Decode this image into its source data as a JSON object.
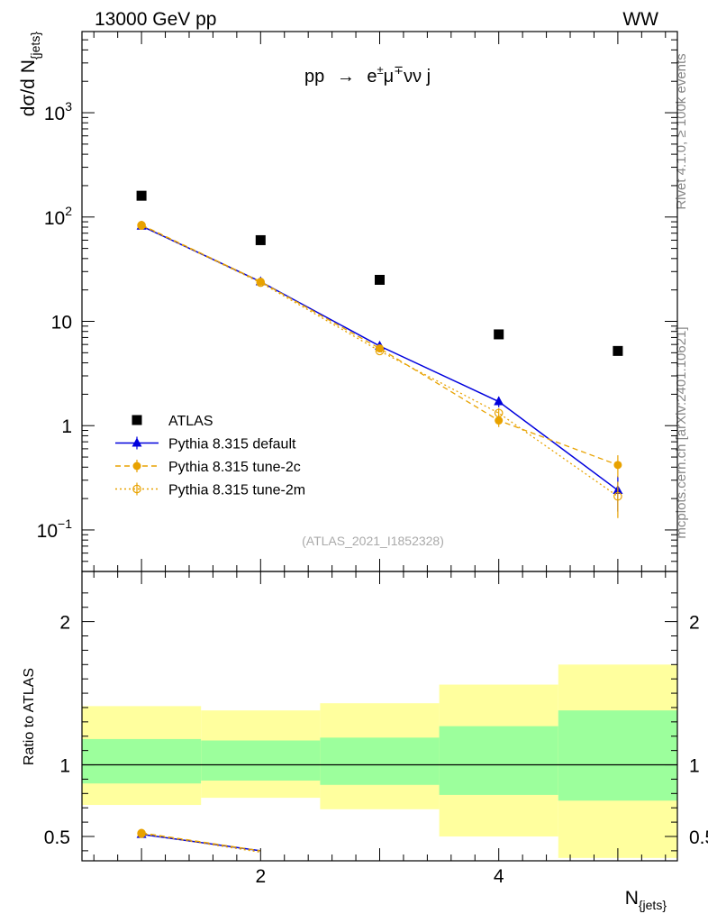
{
  "header": {
    "left": "13000 GeV pp",
    "right": "WW"
  },
  "side_labels": {
    "top": "Rivet 4.1.0, ≥ 100k events",
    "bottom": "mcplots.cern.ch [arXiv:2401.10621]"
  },
  "chart_data": [
    {
      "type": "scatter",
      "name": "main",
      "title": "pp → e±μ∓νν j",
      "title_parts": {
        "lead": "pp",
        "arrow": "→",
        "e": "e",
        "e_sup": "±",
        "mu": "μ",
        "mu_sup": "∓",
        "tail": "νν j"
      },
      "ylabel": "dσ/d N",
      "ylabel_sub": "{jets}",
      "yscale": "log",
      "ylim": [
        0.04,
        6000
      ],
      "xlim": [
        0.5,
        5.5
      ],
      "ytick_labels": [
        {
          "value": 1000,
          "base": "10",
          "sup": "3"
        },
        {
          "value": 100,
          "base": "10",
          "sup": "2"
        },
        {
          "value": 10,
          "base": "10",
          "sup": ""
        },
        {
          "value": 1,
          "base": "1",
          "sup": ""
        },
        {
          "value": 0.1,
          "base": "10",
          "sup": "−1"
        }
      ],
      "watermark": "(ATLAS_2021_I1852328)",
      "legend_position": "lower-left",
      "series": [
        {
          "name": "ATLAS",
          "x": [
            1,
            2,
            3,
            4,
            5
          ],
          "y": [
            160,
            60,
            25,
            7.5,
            5.2
          ],
          "color": "#000000",
          "marker": "square"
        },
        {
          "name": "Pythia 8.315 default",
          "x": [
            1,
            2,
            3,
            4,
            5
          ],
          "y": [
            82,
            24,
            5.8,
            1.7,
            0.24
          ],
          "yerr": [
            1.5,
            0.4,
            0.15,
            0.2,
            0.09
          ],
          "color": "#0000dd",
          "marker": "triangle",
          "line": "solid"
        },
        {
          "name": "Pythia 8.315 tune-2c",
          "x": [
            1,
            2,
            3,
            4,
            5
          ],
          "y": [
            84,
            24,
            5.5,
            1.12,
            0.42
          ],
          "yerr": [
            1.5,
            0.4,
            0.15,
            0.15,
            0.1
          ],
          "color": "#e8a200",
          "marker": "circle-filled",
          "line": "dashed"
        },
        {
          "name": "Pythia 8.315 tune-2m",
          "x": [
            1,
            2,
            3,
            4,
            5
          ],
          "y": [
            83,
            23.5,
            5.2,
            1.32,
            0.21
          ],
          "yerr": [
            1.5,
            0.4,
            0.15,
            0.15,
            0.08
          ],
          "color": "#e8a200",
          "marker": "circle-open",
          "line": "dotted"
        }
      ]
    },
    {
      "type": "scatter",
      "name": "ratio",
      "ylabel": "Ratio to ATLAS",
      "xlabel": "N",
      "xlabel_sub": "{jets}",
      "ylim": [
        0.33,
        2.35
      ],
      "xlim": [
        0.5,
        5.5
      ],
      "ytick_labels": [
        "0.5",
        "1",
        "2"
      ],
      "ytick_values": [
        0.5,
        1,
        2
      ],
      "xtick_labels": [
        "2",
        "4"
      ],
      "xtick_values": [
        2,
        4
      ],
      "reference_line": 1,
      "bands": [
        {
          "x0": 0.5,
          "x1": 1.5,
          "green": [
            0.87,
            1.18
          ],
          "yellow": [
            0.72,
            1.41
          ]
        },
        {
          "x0": 1.5,
          "x1": 2.5,
          "green": [
            0.89,
            1.17
          ],
          "yellow": [
            0.77,
            1.38
          ]
        },
        {
          "x0": 2.5,
          "x1": 3.5,
          "green": [
            0.86,
            1.19
          ],
          "yellow": [
            0.69,
            1.43
          ]
        },
        {
          "x0": 3.5,
          "x1": 4.5,
          "green": [
            0.79,
            1.27
          ],
          "yellow": [
            0.5,
            1.56
          ]
        },
        {
          "x0": 4.5,
          "x1": 5.5,
          "green": [
            0.75,
            1.38
          ],
          "yellow": [
            0.35,
            1.7
          ]
        }
      ],
      "series": [
        {
          "name": "Pythia 8.315 default",
          "x": [
            1,
            2
          ],
          "y": [
            0.515,
            0.4
          ],
          "color": "#0000dd",
          "marker": "triangle",
          "line": "solid"
        },
        {
          "name": "Pythia 8.315 tune-2c",
          "x": [
            1,
            2
          ],
          "y": [
            0.525,
            0.4
          ],
          "color": "#e8a200",
          "marker": "circle-filled",
          "line": "dashed"
        },
        {
          "name": "Pythia 8.315 tune-2m",
          "x": [
            1,
            2
          ],
          "y": [
            0.52,
            0.39
          ],
          "color": "#e8a200",
          "marker": "circle-open",
          "line": "dotted"
        }
      ]
    }
  ]
}
